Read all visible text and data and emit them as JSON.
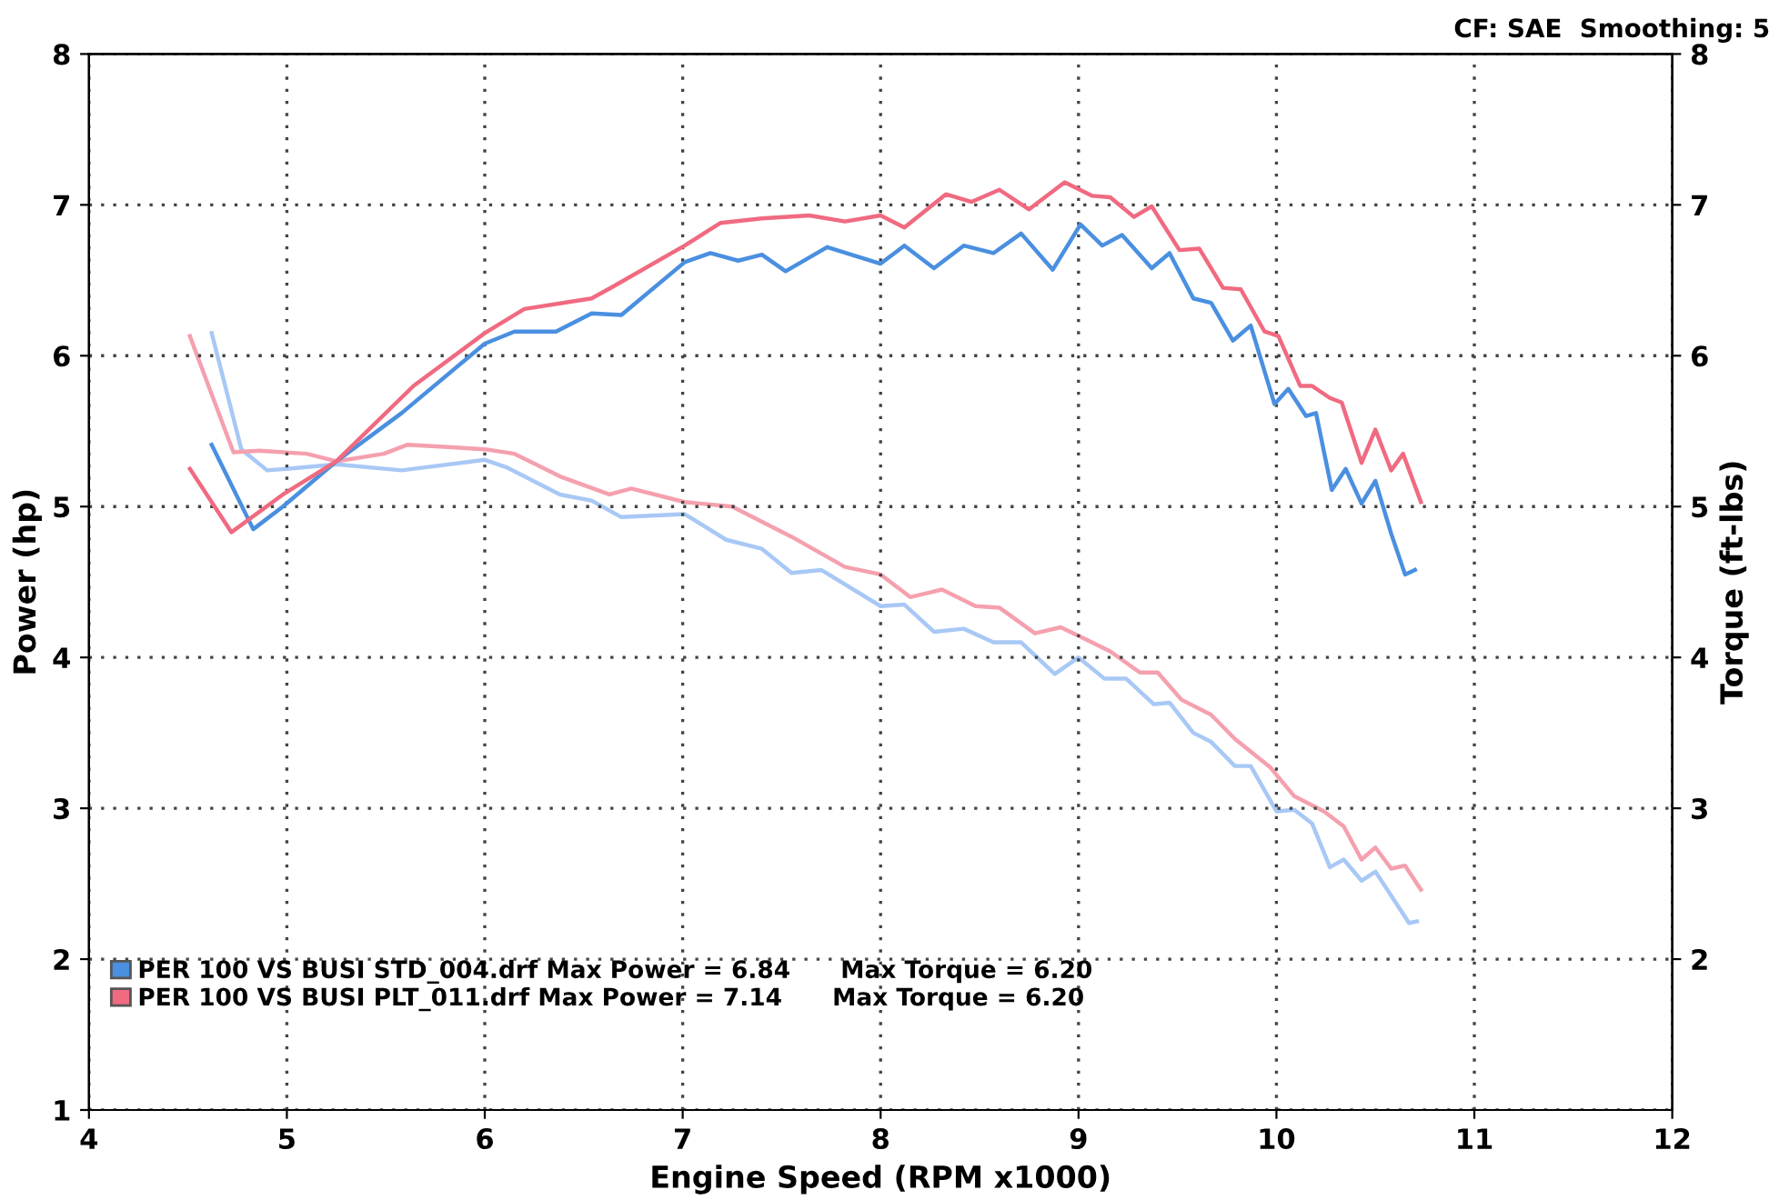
{
  "chart_data": {
    "type": "line",
    "xlabel": "Engine Speed (RPM x1000)",
    "ylabel": "Power (hp)",
    "y2label": "Torque (ft-lbs)",
    "annotations": [
      "CF: SAE  Smoothing: 5"
    ],
    "xlim": [
      4,
      12
    ],
    "xticks": [
      4,
      5,
      6,
      7,
      8,
      9,
      10,
      11,
      12
    ],
    "ylim": [
      1,
      8
    ],
    "yticks": [
      1,
      2,
      3,
      4,
      5,
      6,
      7,
      8
    ],
    "y2lim": [
      1,
      8
    ],
    "y2ticks": [
      2,
      3,
      4,
      5,
      6,
      7,
      8
    ],
    "grid": true,
    "legend": "bottom left",
    "line_style": "solid",
    "marker": "none",
    "series": [
      {
        "name": "PER 100 VS BUSI STD_004.drf Max Power = 6.84      Max Torque = 6.20",
        "color": "#4a8fe0",
        "x": [
          4.62,
          4.83,
          4.98,
          5.25,
          5.58,
          6.0,
          6.15,
          6.36,
          6.54,
          6.69,
          7.01,
          7.14,
          7.28,
          7.4,
          7.52,
          7.73,
          8.0,
          8.12,
          8.27,
          8.42,
          8.57,
          8.71,
          8.87,
          9.01,
          9.12,
          9.22,
          9.37,
          9.46,
          9.58,
          9.67,
          9.78,
          9.87,
          9.99,
          10.06,
          10.15,
          10.2,
          10.28,
          10.35,
          10.43,
          10.5,
          10.58,
          10.65,
          10.7
        ],
        "values": [
          5.41,
          4.85,
          5.0,
          5.3,
          5.62,
          6.08,
          6.16,
          6.16,
          6.28,
          6.27,
          6.62,
          6.68,
          6.63,
          6.67,
          6.56,
          6.72,
          6.61,
          6.73,
          6.58,
          6.73,
          6.68,
          6.81,
          6.57,
          6.87,
          6.73,
          6.8,
          6.58,
          6.68,
          6.38,
          6.35,
          6.1,
          6.2,
          5.68,
          5.78,
          5.6,
          5.62,
          5.11,
          5.25,
          5.02,
          5.17,
          4.82,
          4.55,
          4.58
        ]
      },
      {
        "name": "PER 100 VS BUSI PLT_011.drf Max Power = 7.14      Max Torque = 6.20",
        "color": "#f06a80",
        "x": [
          4.51,
          4.72,
          4.98,
          5.25,
          5.64,
          6.0,
          6.2,
          6.54,
          6.65,
          7.01,
          7.19,
          7.4,
          7.64,
          7.82,
          8.0,
          8.12,
          8.33,
          8.46,
          8.6,
          8.75,
          8.93,
          9.07,
          9.16,
          9.28,
          9.37,
          9.51,
          9.61,
          9.73,
          9.82,
          9.94,
          10.01,
          10.12,
          10.18,
          10.27,
          10.33,
          10.43,
          10.5,
          10.58,
          10.64,
          10.73
        ],
        "values": [
          5.25,
          4.83,
          5.08,
          5.3,
          5.8,
          6.15,
          6.31,
          6.38,
          6.46,
          6.73,
          6.88,
          6.91,
          6.93,
          6.89,
          6.93,
          6.85,
          7.07,
          7.02,
          7.1,
          6.97,
          7.15,
          7.06,
          7.05,
          6.92,
          6.99,
          6.7,
          6.71,
          6.45,
          6.44,
          6.16,
          6.13,
          5.8,
          5.8,
          5.72,
          5.69,
          5.29,
          5.51,
          5.24,
          5.35,
          5.03
        ]
      },
      {
        "color": "#a8c8f5",
        "axis": "y2",
        "x": [
          4.62,
          4.77,
          4.9,
          5.0,
          5.25,
          5.58,
          6.0,
          6.11,
          6.38,
          6.54,
          6.69,
          7.01,
          7.22,
          7.4,
          7.55,
          7.7,
          8.0,
          8.12,
          8.27,
          8.42,
          8.57,
          8.71,
          8.88,
          9.0,
          9.13,
          9.24,
          9.38,
          9.46,
          9.58,
          9.67,
          9.79,
          9.87,
          10.0,
          10.09,
          10.18,
          10.27,
          10.34,
          10.43,
          10.5,
          10.6,
          10.67,
          10.71
        ],
        "values": [
          6.15,
          5.38,
          5.24,
          5.25,
          5.28,
          5.24,
          5.31,
          5.26,
          5.08,
          5.04,
          4.93,
          4.95,
          4.78,
          4.72,
          4.56,
          4.58,
          4.34,
          4.35,
          4.17,
          4.19,
          4.1,
          4.1,
          3.89,
          4.0,
          3.86,
          3.86,
          3.69,
          3.7,
          3.5,
          3.44,
          3.28,
          3.28,
          2.98,
          2.99,
          2.9,
          2.61,
          2.66,
          2.52,
          2.58,
          2.38,
          2.24,
          2.25
        ]
      },
      {
        "color": "#f5a0ae",
        "axis": "y2",
        "x": [
          4.51,
          4.73,
          4.86,
          5.1,
          5.25,
          5.49,
          5.61,
          6.0,
          6.15,
          6.38,
          6.63,
          6.74,
          7.01,
          7.25,
          7.55,
          7.82,
          8.0,
          8.15,
          8.31,
          8.48,
          8.6,
          8.78,
          8.91,
          9.02,
          9.16,
          9.31,
          9.4,
          9.52,
          9.67,
          9.79,
          9.97,
          10.09,
          10.24,
          10.34,
          10.43,
          10.5,
          10.58,
          10.65,
          10.73
        ],
        "values": [
          6.13,
          5.36,
          5.37,
          5.35,
          5.3,
          5.35,
          5.41,
          5.38,
          5.35,
          5.2,
          5.08,
          5.12,
          5.03,
          5.0,
          4.8,
          4.6,
          4.55,
          4.4,
          4.45,
          4.34,
          4.33,
          4.16,
          4.2,
          4.13,
          4.04,
          3.9,
          3.9,
          3.72,
          3.62,
          3.46,
          3.27,
          3.08,
          2.98,
          2.88,
          2.66,
          2.74,
          2.6,
          2.62,
          2.46
        ]
      }
    ]
  }
}
